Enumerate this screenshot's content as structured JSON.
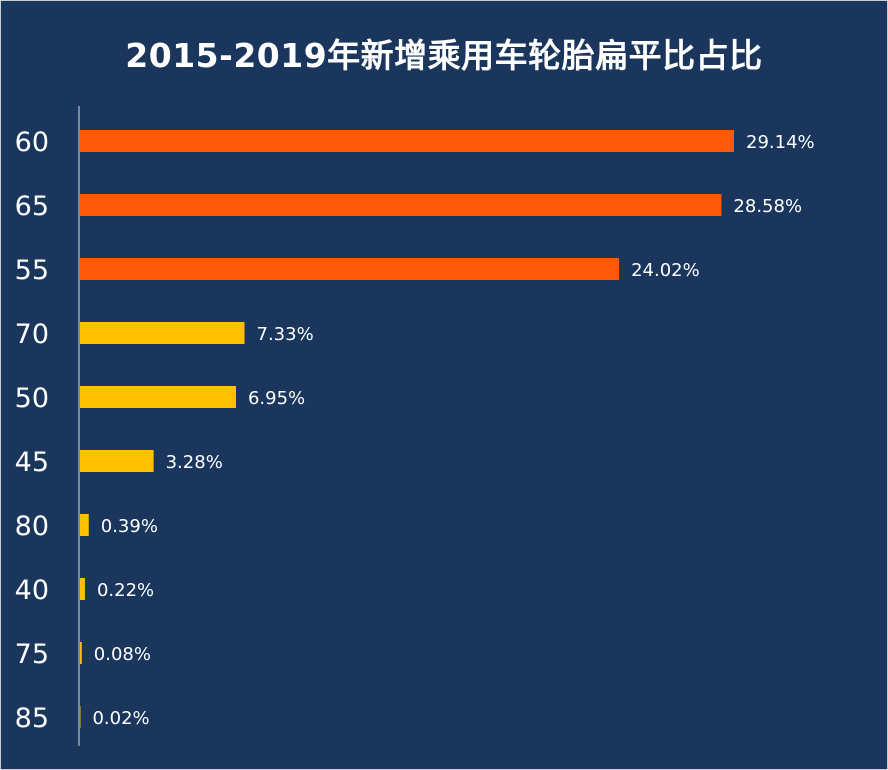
{
  "colors": {
    "background": "#1a365d",
    "top_bars": "#ff5a0a",
    "other_bars": "#ffc000",
    "text": "#ffffff",
    "axis": "#d9d9d9"
  },
  "chart_data": {
    "type": "bar",
    "orientation": "horizontal",
    "title": "2015-2019年新增乘用车轮胎扁平比占比",
    "categories": [
      "60",
      "65",
      "55",
      "70",
      "50",
      "45",
      "80",
      "40",
      "75",
      "85"
    ],
    "values": [
      29.14,
      28.58,
      24.02,
      7.33,
      6.95,
      3.28,
      0.39,
      0.22,
      0.08,
      0.02
    ],
    "value_labels": [
      "29.14%",
      "28.58%",
      "24.02%",
      "7.33%",
      "6.95%",
      "3.28%",
      "0.39%",
      "0.22%",
      "0.08%",
      "0.02%"
    ],
    "highlight_top_n": 3,
    "unit": "%",
    "xlim": [
      0,
      30
    ],
    "grid": false,
    "legend": "none"
  }
}
